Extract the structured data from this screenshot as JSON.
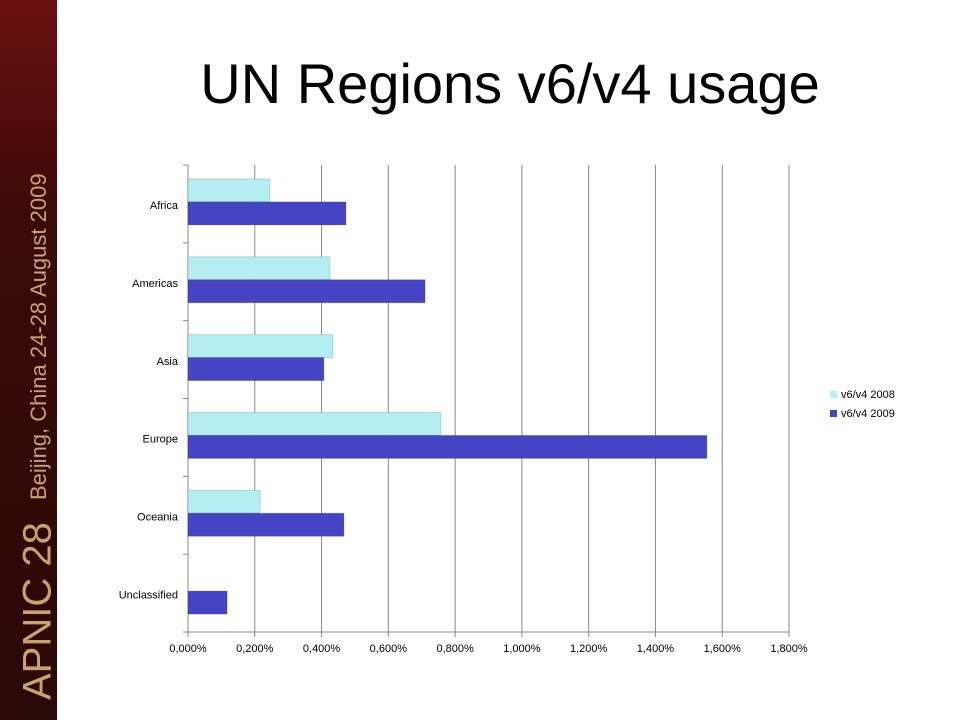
{
  "sidebar": {
    "event": "APNIC 28",
    "location": "Beijing, China 24-28 August 2009"
  },
  "chart_data": {
    "type": "hbar",
    "title": "UN Regions v6/v4 usage",
    "categories": [
      "Africa",
      "Americas",
      "Asia",
      "Europe",
      "Oceania",
      "Unclassified"
    ],
    "series": [
      {
        "name": "v6/v4 2008",
        "color": "#b4eef0",
        "values": [
          0.245,
          0.425,
          0.434,
          0.757,
          0.216,
          null
        ]
      },
      {
        "name": "v6/v4 2009",
        "color": "#4444c4",
        "values": [
          0.473,
          0.71,
          0.407,
          1.554,
          0.467,
          0.117
        ]
      }
    ],
    "xlim": [
      0,
      1.8
    ],
    "xticks": [
      {
        "value": 0,
        "label": "0,000%"
      },
      {
        "value": 0.2,
        "label": "0,200%"
      },
      {
        "value": 0.4,
        "label": "0,400%"
      },
      {
        "value": 0.6,
        "label": "0,600%"
      },
      {
        "value": 0.8,
        "label": "0,800%"
      },
      {
        "value": 1.0,
        "label": "1,000%"
      },
      {
        "value": 1.2,
        "label": "1,200%"
      },
      {
        "value": 1.4,
        "label": "1,400%"
      },
      {
        "value": 1.6,
        "label": "1,600%"
      },
      {
        "value": 1.8,
        "label": "1,800%"
      }
    ],
    "grid": true,
    "legend": "right"
  }
}
